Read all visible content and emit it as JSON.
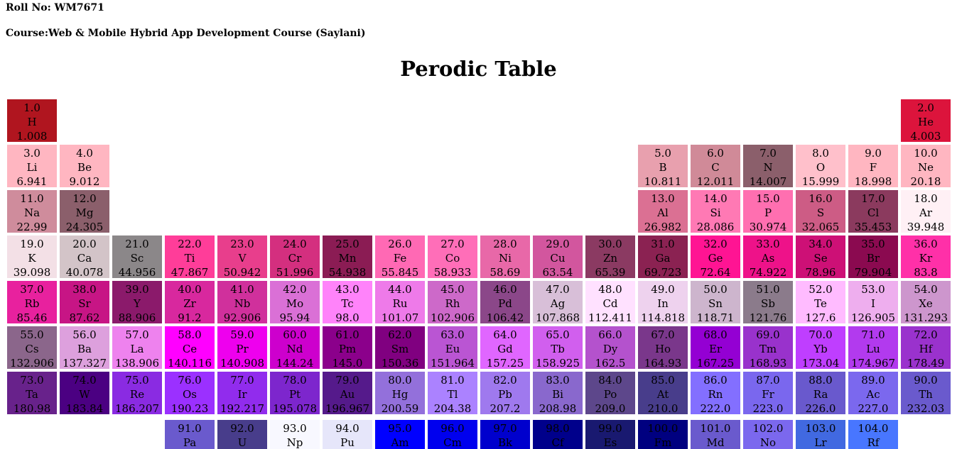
{
  "header": {
    "roll": "Roll No: WM7671",
    "course": "Course:Web & Mobile Hybrid App Development Course (Saylani)"
  },
  "title": "Perodic Table",
  "elements": [
    {
      "n": "1.0",
      "s": "H",
      "m": "1.008",
      "c": "#b0151f"
    },
    {
      "n": "2.0",
      "s": "He",
      "m": "4.003",
      "c": "#dc143c"
    },
    {
      "n": "3.0",
      "s": "Li",
      "m": "6.941",
      "c": "#ffb6c1"
    },
    {
      "n": "4.0",
      "s": "Be",
      "m": "9.012",
      "c": "#ffb6c1"
    },
    {
      "n": "5.0",
      "s": "B",
      "m": "10.811",
      "c": "#e8a0ae"
    },
    {
      "n": "6.0",
      "s": "C",
      "m": "12.011",
      "c": "#d08a98"
    },
    {
      "n": "7.0",
      "s": "N",
      "m": "14.007",
      "c": "#8b5f6b"
    },
    {
      "n": "8.0",
      "s": "O",
      "m": "15.999",
      "c": "#ffc0cb"
    },
    {
      "n": "9.0",
      "s": "F",
      "m": "18.998",
      "c": "#ffb6c1"
    },
    {
      "n": "10.0",
      "s": "Ne",
      "m": "20.18",
      "c": "#ffb6c1"
    },
    {
      "n": "11.0",
      "s": "Na",
      "m": "22.99",
      "c": "#cf8c9c"
    },
    {
      "n": "12.0",
      "s": "Mg",
      "m": "24.305",
      "c": "#8b5f6b"
    },
    {
      "n": "13.0",
      "s": "Al",
      "m": "26.982",
      "c": "#db7093"
    },
    {
      "n": "14.0",
      "s": "Si",
      "m": "28.086",
      "c": "#ff79b4"
    },
    {
      "n": "15.0",
      "s": "P",
      "m": "30.974",
      "c": "#ff6fb0"
    },
    {
      "n": "16.0",
      "s": "S",
      "m": "32.065",
      "c": "#cd5c85"
    },
    {
      "n": "17.0",
      "s": "Cl",
      "m": "35.453",
      "c": "#8b3a5e"
    },
    {
      "n": "18.0",
      "s": "Ar",
      "m": "39.948",
      "c": "#fff0f5"
    },
    {
      "n": "19.0",
      "s": "K",
      "m": "39.098",
      "c": "#f3e0e6"
    },
    {
      "n": "20.0",
      "s": "Ca",
      "m": "40.078",
      "c": "#d3c4c8"
    },
    {
      "n": "21.0",
      "s": "Sc",
      "m": "44.956",
      "c": "#8b8789"
    },
    {
      "n": "22.0",
      "s": "Ti",
      "m": "47.867",
      "c": "#ff3d99"
    },
    {
      "n": "23.0",
      "s": "V",
      "m": "50.942",
      "c": "#e83e8c"
    },
    {
      "n": "24.0",
      "s": "Cr",
      "m": "51.996",
      "c": "#d42f7f"
    },
    {
      "n": "25.0",
      "s": "Mn",
      "m": "54.938",
      "c": "#8b1c54"
    },
    {
      "n": "26.0",
      "s": "Fe",
      "m": "55.845",
      "c": "#ff69b4"
    },
    {
      "n": "27.0",
      "s": "Co",
      "m": "58.933",
      "c": "#ff6eb8"
    },
    {
      "n": "28.0",
      "s": "Ni",
      "m": "58.69",
      "c": "#e868a8"
    },
    {
      "n": "29.0",
      "s": "Cu",
      "m": "63.54",
      "c": "#d2569e"
    },
    {
      "n": "30.0",
      "s": "Zn",
      "m": "65.39",
      "c": "#8b3a62"
    },
    {
      "n": "31.0",
      "s": "Ga",
      "m": "69.723",
      "c": "#8b2252"
    },
    {
      "n": "32.0",
      "s": "Ge",
      "m": "72.64",
      "c": "#ff1493"
    },
    {
      "n": "33.0",
      "s": "As",
      "m": "74.922",
      "c": "#ee1289"
    },
    {
      "n": "34.0",
      "s": "Se",
      "m": "78.96",
      "c": "#cd1076"
    },
    {
      "n": "35.0",
      "s": "Br",
      "m": "79.904",
      "c": "#8b0a50"
    },
    {
      "n": "36.0",
      "s": "Kr",
      "m": "83.8",
      "c": "#ff30a8"
    },
    {
      "n": "37.0",
      "s": "Rb",
      "m": "85.46",
      "c": "#e8219e"
    },
    {
      "n": "38.0",
      "s": "Sr",
      "m": "87.62",
      "c": "#c71585"
    },
    {
      "n": "39.0",
      "s": "Y",
      "m": "88.906",
      "c": "#8b1a6b"
    },
    {
      "n": "40.0",
      "s": "Zr",
      "m": "91.2",
      "c": "#d8289e"
    },
    {
      "n": "41.0",
      "s": "Nb",
      "m": "92.906",
      "c": "#d0309c"
    },
    {
      "n": "42.0",
      "s": "Mo",
      "m": "95.94",
      "c": "#da70d6"
    },
    {
      "n": "43.0",
      "s": "Tc",
      "m": "98.0",
      "c": "#ff83fa"
    },
    {
      "n": "44.0",
      "s": "Ru",
      "m": "101.07",
      "c": "#ee7ae9"
    },
    {
      "n": "45.0",
      "s": "Rh",
      "m": "102.906",
      "c": "#cd69c9"
    },
    {
      "n": "46.0",
      "s": "Pd",
      "m": "106.42",
      "c": "#8b4789"
    },
    {
      "n": "47.0",
      "s": "Ag",
      "m": "107.868",
      "c": "#d8bfd8"
    },
    {
      "n": "48.0",
      "s": "Cd",
      "m": "112.411",
      "c": "#ffe1ff"
    },
    {
      "n": "49.0",
      "s": "In",
      "m": "114.818",
      "c": "#eed2ee"
    },
    {
      "n": "50.0",
      "s": "Sn",
      "m": "118.71",
      "c": "#cdb5cd"
    },
    {
      "n": "51.0",
      "s": "Sb",
      "m": "121.76",
      "c": "#8b7b8b"
    },
    {
      "n": "52.0",
      "s": "Te",
      "m": "127.6",
      "c": "#ffbbff"
    },
    {
      "n": "53.0",
      "s": "I",
      "m": "126.905",
      "c": "#eeaeee"
    },
    {
      "n": "54.0",
      "s": "Xe",
      "m": "131.293",
      "c": "#cd96cd"
    },
    {
      "n": "55.0",
      "s": "Cs",
      "m": "132.906",
      "c": "#8b668b"
    },
    {
      "n": "56.0",
      "s": "Ba",
      "m": "137.327",
      "c": "#dda0dd"
    },
    {
      "n": "57.0",
      "s": "La",
      "m": "138.906",
      "c": "#ee82ee"
    },
    {
      "n": "58.0",
      "s": "Ce",
      "m": "140.116",
      "c": "#ff00ff"
    },
    {
      "n": "59.0",
      "s": "Pr",
      "m": "140.908",
      "c": "#ee00ee"
    },
    {
      "n": "60.0",
      "s": "Nd",
      "m": "144.24",
      "c": "#cd00cd"
    },
    {
      "n": "61.0",
      "s": "Pm",
      "m": "145.0",
      "c": "#8b008b"
    },
    {
      "n": "62.0",
      "s": "Sm",
      "m": "150.36",
      "c": "#800080"
    },
    {
      "n": "63.0",
      "s": "Eu",
      "m": "151.964",
      "c": "#ba55d3"
    },
    {
      "n": "64.0",
      "s": "Gd",
      "m": "157.25",
      "c": "#e066ff"
    },
    {
      "n": "65.0",
      "s": "Tb",
      "m": "158.925",
      "c": "#d15fee"
    },
    {
      "n": "66.0",
      "s": "Dy",
      "m": "162.5",
      "c": "#b452cd"
    },
    {
      "n": "67.0",
      "s": "Ho",
      "m": "164.93",
      "c": "#7a378b"
    },
    {
      "n": "68.0",
      "s": "Er",
      "m": "167.25",
      "c": "#9400d3"
    },
    {
      "n": "69.0",
      "s": "Tm",
      "m": "168.93",
      "c": "#9932cc"
    },
    {
      "n": "70.0",
      "s": "Yb",
      "m": "173.04",
      "c": "#bf3eff"
    },
    {
      "n": "71.0",
      "s": "Lu",
      "m": "174.967",
      "c": "#b23aee"
    },
    {
      "n": "72.0",
      "s": "Hf",
      "m": "178.49",
      "c": "#9a32cd"
    },
    {
      "n": "73.0",
      "s": "Ta",
      "m": "180.98",
      "c": "#68228b"
    },
    {
      "n": "74.0",
      "s": "W",
      "m": "183.84",
      "c": "#4b0082"
    },
    {
      "n": "75.0",
      "s": "Re",
      "m": "186.207",
      "c": "#8a2be2"
    },
    {
      "n": "76.0",
      "s": "Os",
      "m": "190.23",
      "c": "#9b30ff"
    },
    {
      "n": "77.0",
      "s": "Ir",
      "m": "192.217",
      "c": "#912ced"
    },
    {
      "n": "78.0",
      "s": "Pt",
      "m": "195.078",
      "c": "#7d26cd"
    },
    {
      "n": "79.0",
      "s": "Au",
      "m": "196.967",
      "c": "#551a8b"
    },
    {
      "n": "80.0",
      "s": "Hg",
      "m": "200.59",
      "c": "#9370db"
    },
    {
      "n": "81.0",
      "s": "Tl",
      "m": "204.38",
      "c": "#ab82ff"
    },
    {
      "n": "82.0",
      "s": "Pb",
      "m": "207.2",
      "c": "#9f79ee"
    },
    {
      "n": "83.0",
      "s": "Bi",
      "m": "208.98",
      "c": "#8968cd"
    },
    {
      "n": "84.0",
      "s": "Po",
      "m": "209.0",
      "c": "#5d478b"
    },
    {
      "n": "85.0",
      "s": "At",
      "m": "210.0",
      "c": "#483d8b"
    },
    {
      "n": "86.0",
      "s": "Rn",
      "m": "222.0",
      "c": "#836fff"
    },
    {
      "n": "87.0",
      "s": "Fr",
      "m": "223.0",
      "c": "#7a67ee"
    },
    {
      "n": "88.0",
      "s": "Ra",
      "m": "226.0",
      "c": "#6959cd"
    },
    {
      "n": "89.0",
      "s": "Ac",
      "m": "227.0",
      "c": "#7b68ee"
    },
    {
      "n": "90.0",
      "s": "Th",
      "m": "232.03",
      "c": "#6a5acd"
    },
    {
      "n": "91.0",
      "s": "Pa",
      "m": "",
      "c": "#6a5acd"
    },
    {
      "n": "92.0",
      "s": "U",
      "m": "",
      "c": "#483d8b"
    },
    {
      "n": "93.0",
      "s": "Np",
      "m": "",
      "c": "#f8f8ff"
    },
    {
      "n": "94.0",
      "s": "Pu",
      "m": "",
      "c": "#e6e6fa"
    },
    {
      "n": "95.0",
      "s": "Am",
      "m": "",
      "c": "#0000ff"
    },
    {
      "n": "96.0",
      "s": "Cm",
      "m": "",
      "c": "#0000ee"
    },
    {
      "n": "97.0",
      "s": "Bk",
      "m": "",
      "c": "#0000cd"
    },
    {
      "n": "98.0",
      "s": "Cf",
      "m": "",
      "c": "#00008b"
    },
    {
      "n": "99.0",
      "s": "Es",
      "m": "",
      "c": "#191970"
    },
    {
      "n": "100.0",
      "s": "Fm",
      "m": "",
      "c": "#000080"
    },
    {
      "n": "101.0",
      "s": "Md",
      "m": "",
      "c": "#6a5acd"
    },
    {
      "n": "102.0",
      "s": "No",
      "m": "",
      "c": "#7b68ee"
    },
    {
      "n": "103.0",
      "s": "Lr",
      "m": "",
      "c": "#4169e1"
    },
    {
      "n": "104.0",
      "s": "Rf",
      "m": "",
      "c": "#4876ff"
    }
  ]
}
